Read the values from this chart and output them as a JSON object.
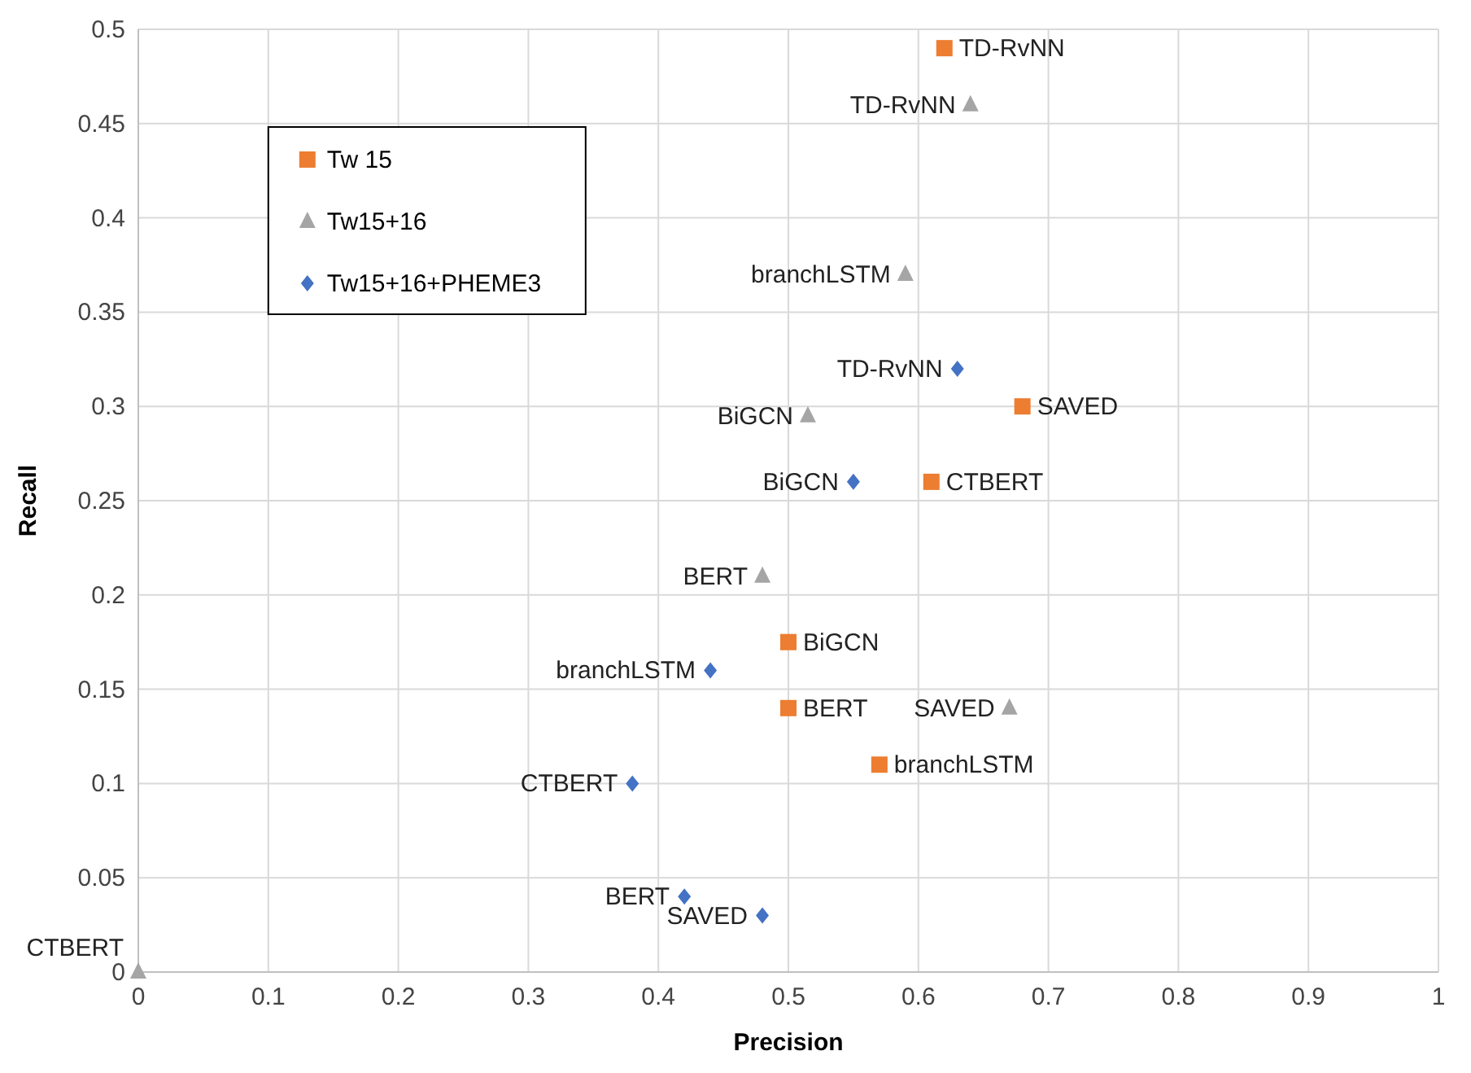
{
  "chart_data": {
    "type": "scatter",
    "xlabel": "Precision",
    "ylabel": "Recall",
    "xlim": [
      0,
      1
    ],
    "ylim": [
      0,
      0.5
    ],
    "xticks": [
      0,
      0.1,
      0.2,
      0.3,
      0.4,
      0.5,
      0.6,
      0.7,
      0.8,
      0.9,
      1
    ],
    "yticks": [
      0,
      0.05,
      0.1,
      0.15,
      0.2,
      0.25,
      0.3,
      0.35,
      0.4,
      0.45,
      0.5
    ],
    "grid": true,
    "legend": "top left",
    "series": [
      {
        "name": "Tw 15",
        "color": "#ed7d31",
        "marker": "square",
        "x": [
          0.62,
          0.68,
          0.61,
          0.5,
          0.5,
          0.57
        ],
        "values": [
          0.49,
          0.3,
          0.26,
          0.175,
          0.14,
          0.11
        ],
        "value_labels": [
          "TD-RvNN",
          "SAVED",
          "CTBERT",
          "BiGCN",
          "BERT",
          "branchLSTM"
        ]
      },
      {
        "name": "Tw15+16",
        "color": "#a5a5a5",
        "marker": "triangle",
        "x": [
          0.64,
          0.59,
          0.515,
          0.48,
          0.67,
          0
        ],
        "values": [
          0.46,
          0.37,
          0.295,
          0.21,
          0.14,
          0
        ],
        "value_labels": [
          "TD-RvNN",
          "branchLSTM",
          "BiGCN",
          "BERT",
          "SAVED",
          "CTBERT"
        ]
      },
      {
        "name": "Tw15+16+PHEME3",
        "color": "#4472c4",
        "marker": "diamond",
        "x": [
          0.63,
          0.55,
          0.44,
          0.38,
          0.42,
          0.48
        ],
        "values": [
          0.32,
          0.26,
          0.16,
          0.1,
          0.04,
          0.03
        ],
        "value_labels": [
          "TD-RvNN",
          "BiGCN",
          "branchLSTM",
          "CTBERT",
          "BERT",
          "SAVED"
        ]
      }
    ]
  }
}
